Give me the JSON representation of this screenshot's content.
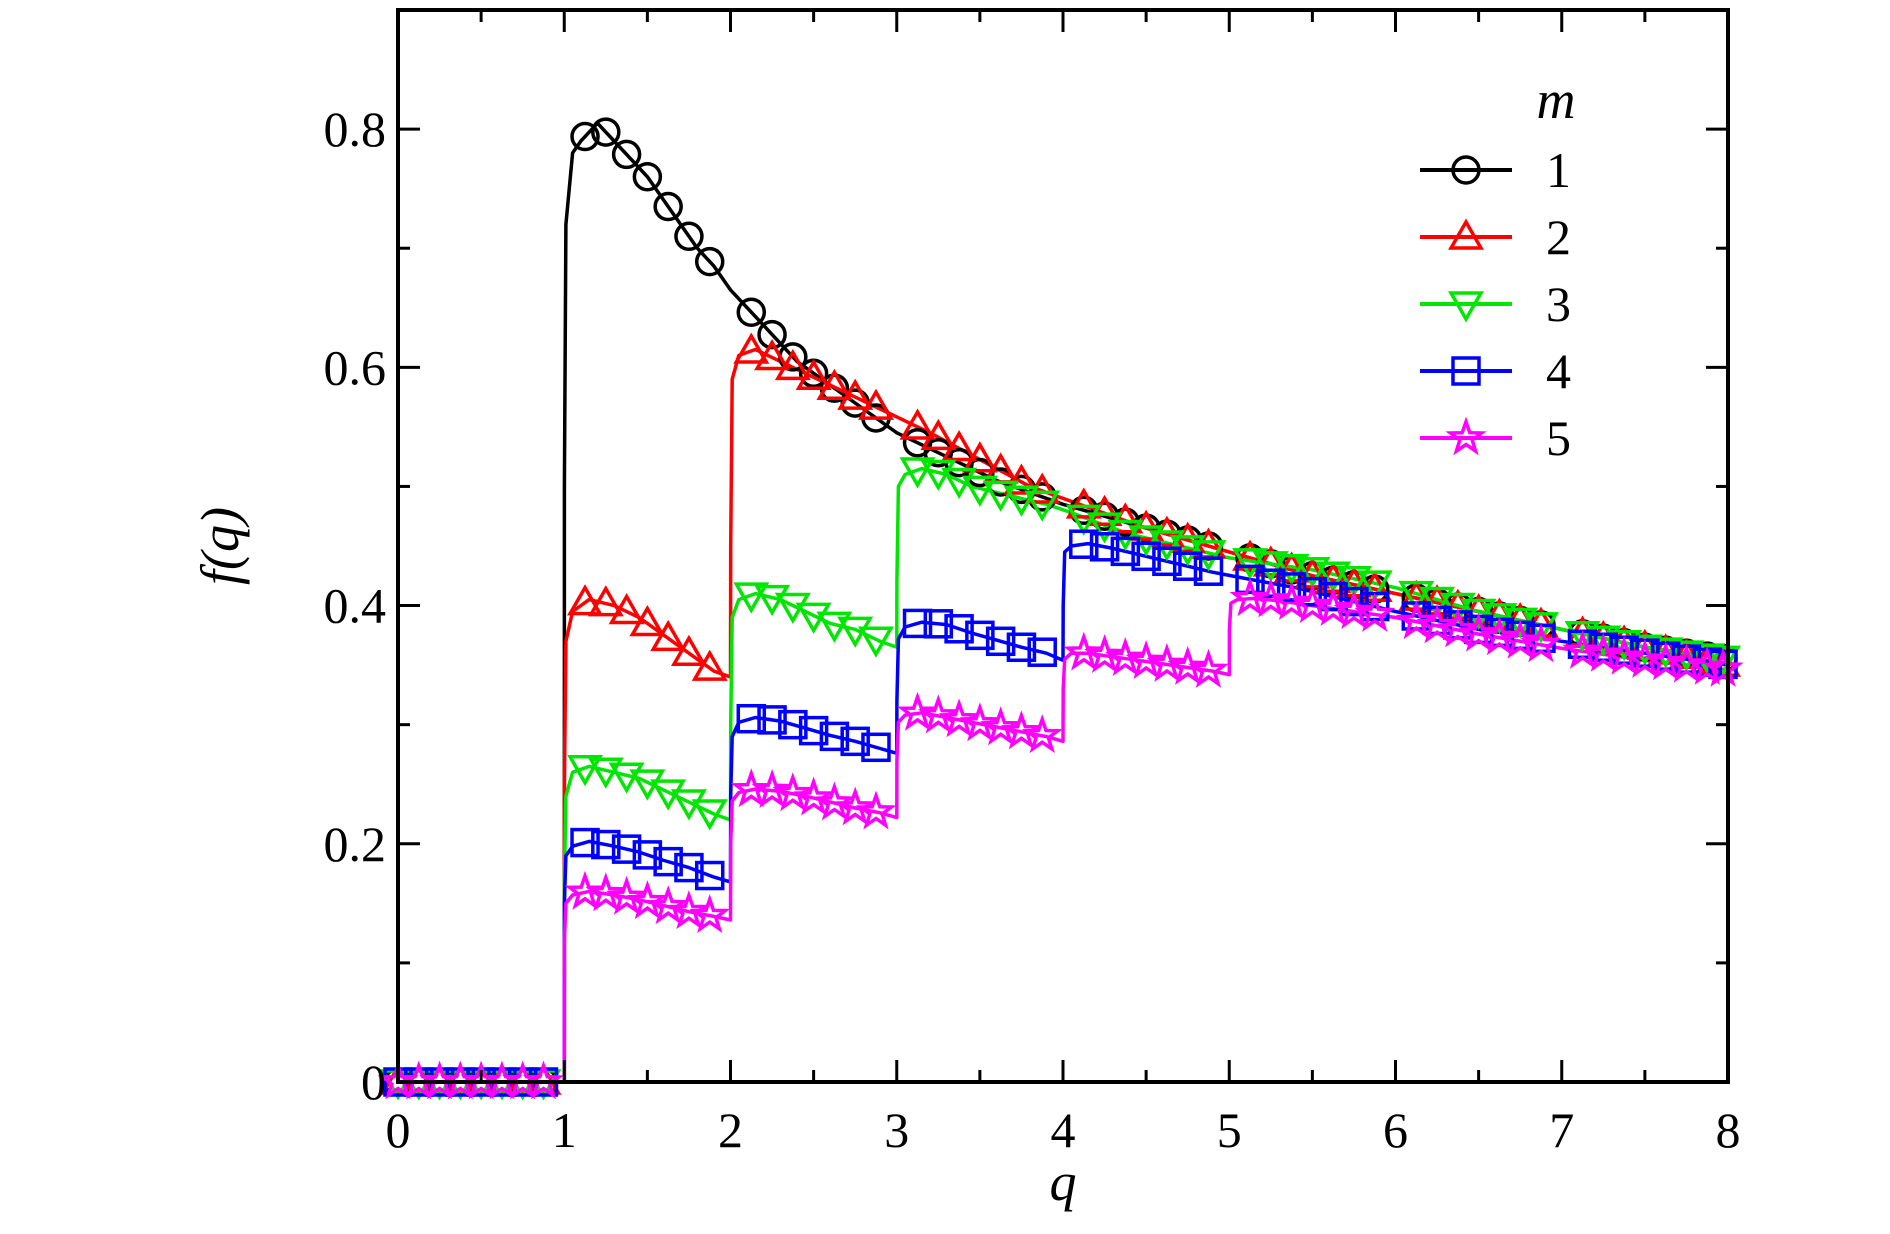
{
  "chart_data": {
    "type": "line",
    "xlabel": "q",
    "ylabel": "f(q)",
    "xlim": [
      0,
      8
    ],
    "ylim": [
      0,
      0.9
    ],
    "x_ticks": [
      0,
      1,
      2,
      3,
      4,
      5,
      6,
      7,
      8
    ],
    "x_tick_labels": [
      "0",
      "1",
      "2",
      "3",
      "4",
      "5",
      "6",
      "7",
      "8"
    ],
    "y_ticks": [
      0,
      0.2,
      0.4,
      0.6,
      0.8
    ],
    "y_tick_labels": [
      "0",
      "0.2",
      "0.4",
      "0.6",
      "0.8"
    ],
    "grid": false,
    "legend": {
      "title": "m",
      "position": "top-right"
    },
    "series": [
      {
        "name": "1",
        "color": "#000000",
        "marker": "circle",
        "x": [
          0.0,
          0.1,
          0.2,
          0.3,
          0.4,
          0.5,
          0.6,
          0.7,
          0.8,
          0.9,
          1.0,
          1.001,
          1.01,
          1.05,
          1.1,
          1.2,
          1.3,
          1.4,
          1.5,
          1.6,
          1.7,
          1.8,
          1.9,
          2.0,
          2.2,
          2.4,
          2.6,
          2.8,
          3.0,
          3.3,
          3.6,
          4.0,
          4.5,
          5.0,
          5.5,
          6.0,
          6.5,
          7.0,
          7.5,
          8.0
        ],
        "y": [
          0,
          0,
          0,
          0,
          0,
          0,
          0,
          0,
          0,
          0,
          0,
          0.5,
          0.72,
          0.78,
          0.79,
          0.805,
          0.79,
          0.775,
          0.76,
          0.74,
          0.72,
          0.7,
          0.685,
          0.665,
          0.635,
          0.605,
          0.585,
          0.565,
          0.545,
          0.525,
          0.505,
          0.485,
          0.465,
          0.445,
          0.425,
          0.41,
          0.395,
          0.38,
          0.365,
          0.355
        ]
      },
      {
        "name": "2",
        "color": "#ff0000",
        "marker": "triangle-up",
        "x": [
          0.0,
          0.1,
          0.2,
          0.3,
          0.4,
          0.5,
          0.6,
          0.7,
          0.8,
          0.9,
          1.0,
          1.001,
          1.01,
          1.05,
          1.15,
          1.3,
          1.45,
          1.6,
          1.75,
          1.9,
          2.0,
          2.001,
          2.01,
          2.05,
          2.15,
          2.3,
          2.45,
          2.6,
          2.75,
          2.9,
          3.05,
          3.2,
          3.4,
          3.6,
          3.8,
          4.0,
          4.5,
          5.0,
          5.5,
          6.0,
          6.5,
          7.0,
          7.5,
          8.0
        ],
        "y": [
          0,
          0,
          0,
          0,
          0,
          0,
          0,
          0,
          0,
          0,
          0,
          0.25,
          0.37,
          0.395,
          0.405,
          0.4,
          0.39,
          0.375,
          0.36,
          0.345,
          0.34,
          0.45,
          0.59,
          0.61,
          0.615,
          0.605,
          0.595,
          0.585,
          0.575,
          0.565,
          0.555,
          0.545,
          0.53,
          0.515,
          0.5,
          0.49,
          0.465,
          0.445,
          0.425,
          0.41,
          0.395,
          0.38,
          0.365,
          0.35
        ]
      },
      {
        "name": "3",
        "color": "#00e600",
        "marker": "triangle-down",
        "x": [
          0.0,
          0.1,
          0.2,
          0.3,
          0.4,
          0.5,
          0.6,
          0.7,
          0.8,
          0.9,
          1.0,
          1.001,
          1.01,
          1.05,
          1.15,
          1.3,
          1.45,
          1.6,
          1.75,
          1.9,
          2.0,
          2.001,
          2.01,
          2.05,
          2.15,
          2.3,
          2.45,
          2.6,
          2.75,
          2.9,
          3.0,
          3.001,
          3.01,
          3.05,
          3.15,
          3.3,
          3.45,
          3.6,
          3.75,
          3.9,
          4.05,
          4.2,
          4.4,
          4.7,
          5.0,
          5.5,
          6.0,
          6.5,
          7.0,
          7.5,
          8.0
        ],
        "y": [
          0,
          0,
          0,
          0,
          0,
          0,
          0,
          0,
          0,
          0,
          0,
          0.17,
          0.24,
          0.26,
          0.265,
          0.26,
          0.255,
          0.245,
          0.235,
          0.225,
          0.22,
          0.3,
          0.39,
          0.405,
          0.41,
          0.405,
          0.395,
          0.385,
          0.38,
          0.37,
          0.365,
          0.42,
          0.5,
          0.51,
          0.515,
          0.51,
          0.5,
          0.495,
          0.49,
          0.485,
          0.478,
          0.47,
          0.46,
          0.45,
          0.44,
          0.43,
          0.415,
          0.395,
          0.38,
          0.365,
          0.355
        ]
      },
      {
        "name": "4",
        "color": "#0000ff",
        "marker": "square",
        "x": [
          0.0,
          0.1,
          0.2,
          0.3,
          0.4,
          0.5,
          0.6,
          0.7,
          0.8,
          0.9,
          1.0,
          1.001,
          1.01,
          1.05,
          1.15,
          1.3,
          1.45,
          1.6,
          1.75,
          1.9,
          2.0,
          2.001,
          2.01,
          2.05,
          2.15,
          2.3,
          2.45,
          2.6,
          2.75,
          2.9,
          3.0,
          3.001,
          3.01,
          3.05,
          3.15,
          3.3,
          3.45,
          3.6,
          3.75,
          3.9,
          4.0,
          4.001,
          4.01,
          4.05,
          4.15,
          4.3,
          4.45,
          4.6,
          4.75,
          4.9,
          5.05,
          5.2,
          5.4,
          5.7,
          6.0,
          6.5,
          7.0,
          7.5,
          8.0
        ],
        "y": [
          0,
          0,
          0,
          0,
          0,
          0,
          0,
          0,
          0,
          0,
          0,
          0.15,
          0.19,
          0.198,
          0.202,
          0.198,
          0.193,
          0.186,
          0.18,
          0.172,
          0.168,
          0.24,
          0.29,
          0.302,
          0.306,
          0.303,
          0.297,
          0.291,
          0.286,
          0.28,
          0.276,
          0.32,
          0.372,
          0.382,
          0.386,
          0.384,
          0.377,
          0.371,
          0.365,
          0.36,
          0.354,
          0.4,
          0.445,
          0.45,
          0.452,
          0.448,
          0.443,
          0.438,
          0.433,
          0.428,
          0.424,
          0.42,
          0.415,
          0.405,
          0.395,
          0.38,
          0.37,
          0.36,
          0.35
        ]
      },
      {
        "name": "5",
        "color": "#ff00ff",
        "marker": "star",
        "x": [
          0.0,
          0.1,
          0.2,
          0.3,
          0.4,
          0.5,
          0.6,
          0.7,
          0.8,
          0.9,
          1.0,
          1.001,
          1.01,
          1.05,
          1.15,
          1.3,
          1.45,
          1.6,
          1.75,
          1.9,
          2.0,
          2.001,
          2.01,
          2.05,
          2.15,
          2.3,
          2.45,
          2.6,
          2.75,
          2.9,
          3.0,
          3.001,
          3.01,
          3.05,
          3.15,
          3.3,
          3.45,
          3.6,
          3.75,
          3.9,
          4.0,
          4.001,
          4.01,
          4.05,
          4.15,
          4.3,
          4.45,
          4.6,
          4.75,
          4.9,
          5.0,
          5.001,
          5.01,
          5.05,
          5.15,
          5.3,
          5.5,
          5.8,
          6.0,
          6.5,
          7.0,
          7.5,
          8.0
        ],
        "y": [
          0,
          0,
          0,
          0,
          0,
          0,
          0,
          0,
          0,
          0,
          0,
          0.12,
          0.15,
          0.157,
          0.16,
          0.157,
          0.153,
          0.148,
          0.143,
          0.139,
          0.136,
          0.2,
          0.236,
          0.243,
          0.246,
          0.244,
          0.24,
          0.235,
          0.23,
          0.226,
          0.222,
          0.27,
          0.302,
          0.308,
          0.31,
          0.306,
          0.302,
          0.298,
          0.294,
          0.29,
          0.286,
          0.33,
          0.355,
          0.36,
          0.36,
          0.357,
          0.354,
          0.351,
          0.348,
          0.345,
          0.342,
          0.38,
          0.402,
          0.405,
          0.406,
          0.404,
          0.4,
          0.394,
          0.39,
          0.376,
          0.364,
          0.354,
          0.346
        ]
      }
    ]
  }
}
